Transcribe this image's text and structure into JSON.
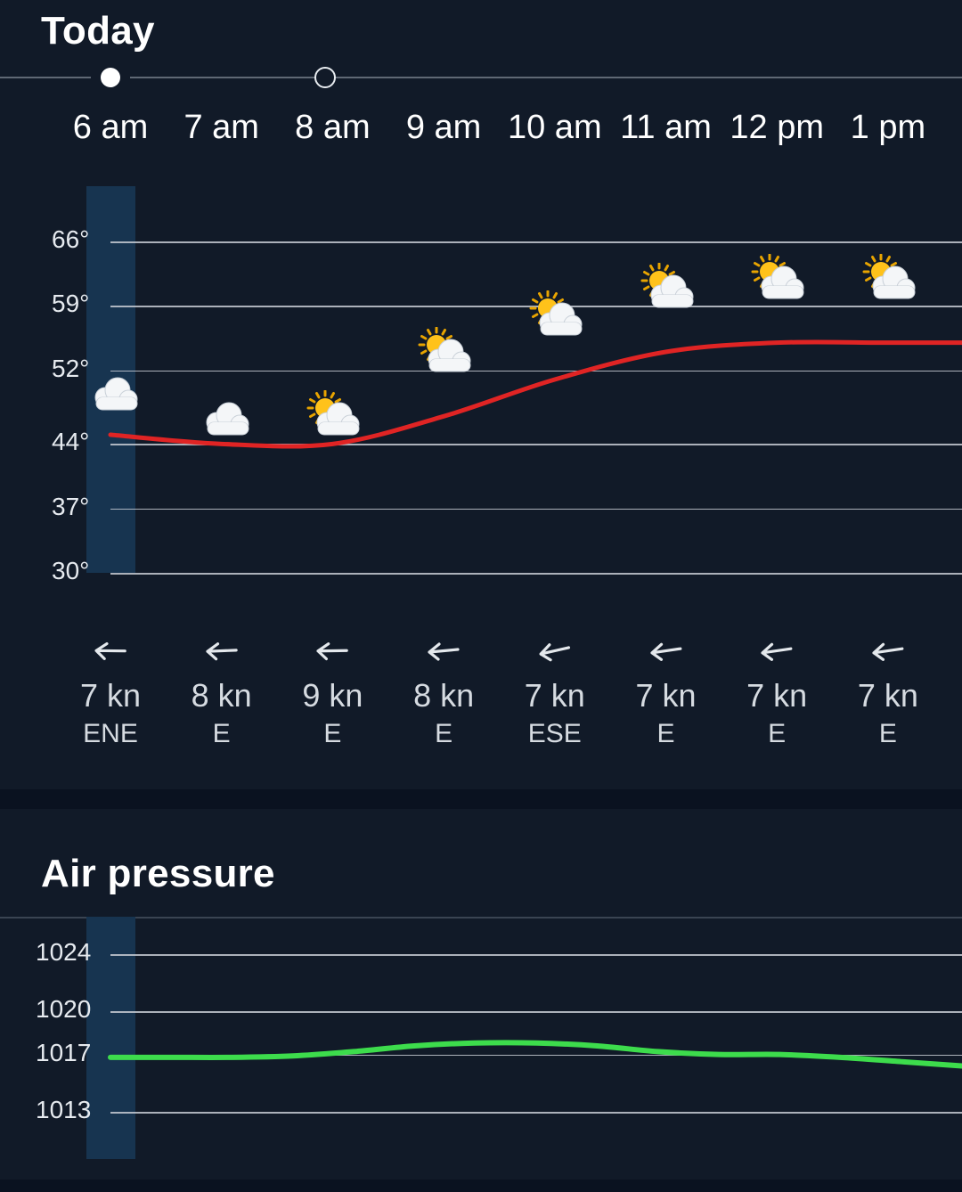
{
  "today": {
    "title": "Today",
    "hours": [
      {
        "label": "6 am",
        "temp": 45,
        "icon": "cloud-icon",
        "wind_speed": "7 kn",
        "wind_dir": "ENE",
        "wind_bearing": 70
      },
      {
        "label": "7 am",
        "temp": 44,
        "icon": "cloud-icon",
        "wind_speed": "8 kn",
        "wind_dir": "E",
        "wind_bearing": 80
      },
      {
        "label": "8 am",
        "temp": 44,
        "icon": "partly-cloudy-icon",
        "wind_speed": "9 kn",
        "wind_dir": "E",
        "wind_bearing": 75
      },
      {
        "label": "9 am",
        "temp": 47,
        "icon": "partly-cloudy-icon",
        "wind_speed": "8 kn",
        "wind_dir": "E",
        "wind_bearing": 90
      },
      {
        "label": "10 am",
        "temp": 51,
        "icon": "partly-cloudy-icon",
        "wind_speed": "7 kn",
        "wind_dir": "ESE",
        "wind_bearing": 115
      },
      {
        "label": "11 am",
        "temp": 54,
        "icon": "partly-cloudy-icon",
        "wind_speed": "7 kn",
        "wind_dir": "E",
        "wind_bearing": 100
      },
      {
        "label": "12 pm",
        "temp": 55,
        "icon": "partly-cloudy-icon",
        "wind_speed": "7 kn",
        "wind_dir": "E",
        "wind_bearing": 100
      },
      {
        "label": "1 pm",
        "temp": 55,
        "icon": "partly-cloudy-icon",
        "wind_speed": "7 kn",
        "wind_dir": "E",
        "wind_bearing": 100
      }
    ],
    "temp_axis": {
      "ticks": [
        "66°",
        "59°",
        "52°",
        "44°",
        "37°",
        "30°"
      ],
      "tick_values": [
        66,
        59,
        52,
        44,
        37,
        30
      ]
    },
    "colors": {
      "temp_line": "#e02424",
      "highlight": "#173450",
      "background": "#111a28"
    }
  },
  "pressure": {
    "title": "Air pressure",
    "axis": {
      "ticks": [
        "1024",
        "1020",
        "1017",
        "1013"
      ],
      "tick_values": [
        1024,
        1020,
        1017,
        1013
      ]
    },
    "values": [
      1016.8,
      1016.8,
      1016.8,
      1016.9,
      1017.2,
      1017.6,
      1017.8,
      1017.8,
      1017.6,
      1017.2,
      1017.0,
      1017.0,
      1016.8,
      1016.5,
      1016.2
    ],
    "colors": {
      "line": "#3ddc4c"
    }
  }
}
